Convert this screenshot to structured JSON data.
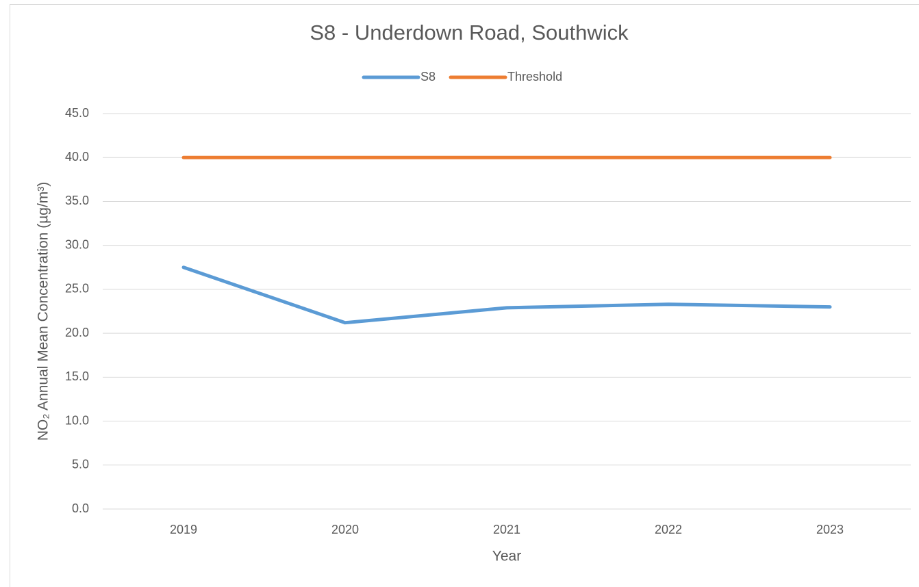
{
  "chart_data": {
    "type": "line",
    "title": "S8 - Underdown Road, Southwick",
    "x_label": "Year",
    "y_label": "NO₂ Annual Mean Concentration (µg/m³)",
    "categories": [
      "2019",
      "2020",
      "2021",
      "2022",
      "2023"
    ],
    "series": [
      {
        "name": "S8",
        "color": "#5b9bd5",
        "values": [
          27.5,
          21.2,
          22.9,
          23.3,
          23.0
        ]
      },
      {
        "name": "Threshold",
        "color": "#ed7d31",
        "values": [
          40,
          40,
          40,
          40,
          40
        ]
      }
    ],
    "ylim": [
      0,
      45
    ],
    "yticks": [
      {
        "value": 0,
        "label": "0.0"
      },
      {
        "value": 5,
        "label": "5.0"
      },
      {
        "value": 10,
        "label": "10.0"
      },
      {
        "value": 15,
        "label": "15.0"
      },
      {
        "value": 20,
        "label": "20.0"
      },
      {
        "value": 25,
        "label": "25.0"
      },
      {
        "value": 30,
        "label": "30.0"
      },
      {
        "value": 35,
        "label": "35.0"
      },
      {
        "value": 40,
        "label": "40.0"
      },
      {
        "value": 45,
        "label": "45.0"
      }
    ],
    "grid": true,
    "legend": "top"
  }
}
